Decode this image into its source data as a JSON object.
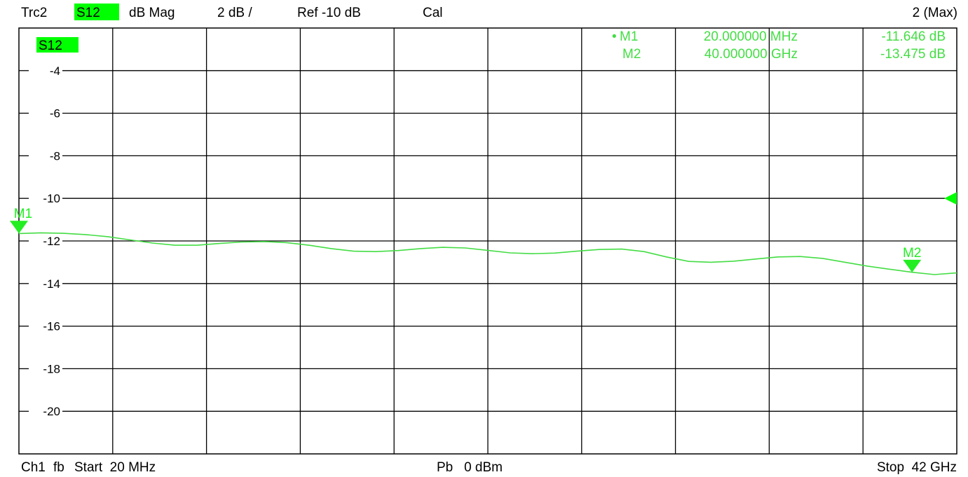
{
  "header": {
    "trace": "Trc2",
    "param": "S12",
    "format": "dB Mag",
    "scale": "2 dB /",
    "ref": "Ref -10 dB",
    "cal": "Cal",
    "max_label": "2 (Max)"
  },
  "footer": {
    "channel": "Ch1",
    "mode": "fb",
    "start": "Start  20 MHz",
    "power": "Pb   0 dBm",
    "stop": "Stop  42 GHz"
  },
  "trace_label": "S12",
  "colors": {
    "trace": "#44dd44",
    "marker": "#22ee22",
    "highlight": "#00ff00",
    "grid": "#000000",
    "text": "#000000"
  },
  "markers": [
    {
      "id": "M1",
      "active_dot": "•",
      "freq": "20.000000 MHz",
      "value": "-11.646 dB",
      "x": 0.02,
      "y": -11.646
    },
    {
      "id": "M2",
      "active_dot": "",
      "freq": "40.000000 GHz",
      "value": "-13.475 dB",
      "x": 40.0,
      "y": -13.475
    }
  ],
  "chart_data": {
    "type": "line",
    "xunit": "GHz",
    "yunit": "dB",
    "xlim": [
      0.02,
      42
    ],
    "ylim": [
      -22,
      -2
    ],
    "ytick_values": [
      -4,
      -6,
      -8,
      -10,
      -12,
      -14,
      -16,
      -18,
      -20
    ],
    "ytick_labels": [
      "-4",
      "-6",
      "-8",
      "-10",
      "-12",
      "-14",
      "-16",
      "-18",
      "-20"
    ],
    "x_divisions": 10,
    "grid": true,
    "ref_level": -10,
    "series": [
      {
        "x": [
          0.02,
          1,
          2,
          3,
          4,
          5,
          6,
          7,
          8,
          9,
          10,
          11,
          12,
          13,
          14,
          15,
          16,
          17,
          18,
          19,
          20,
          21,
          22,
          23,
          24,
          25,
          26,
          27,
          28,
          29,
          30,
          31,
          32,
          33,
          34,
          35,
          36,
          37,
          38,
          39,
          40,
          41,
          42
        ],
        "y": [
          -11.65,
          -11.62,
          -11.64,
          -11.7,
          -11.8,
          -11.95,
          -12.1,
          -12.2,
          -12.2,
          -12.12,
          -12.05,
          -12.03,
          -12.08,
          -12.2,
          -12.36,
          -12.48,
          -12.5,
          -12.45,
          -12.36,
          -12.3,
          -12.33,
          -12.44,
          -12.56,
          -12.6,
          -12.57,
          -12.48,
          -12.4,
          -12.38,
          -12.5,
          -12.75,
          -12.96,
          -13.0,
          -12.95,
          -12.85,
          -12.75,
          -12.73,
          -12.82,
          -13.0,
          -13.18,
          -13.33,
          -13.47,
          -13.58,
          -13.5
        ]
      }
    ]
  }
}
